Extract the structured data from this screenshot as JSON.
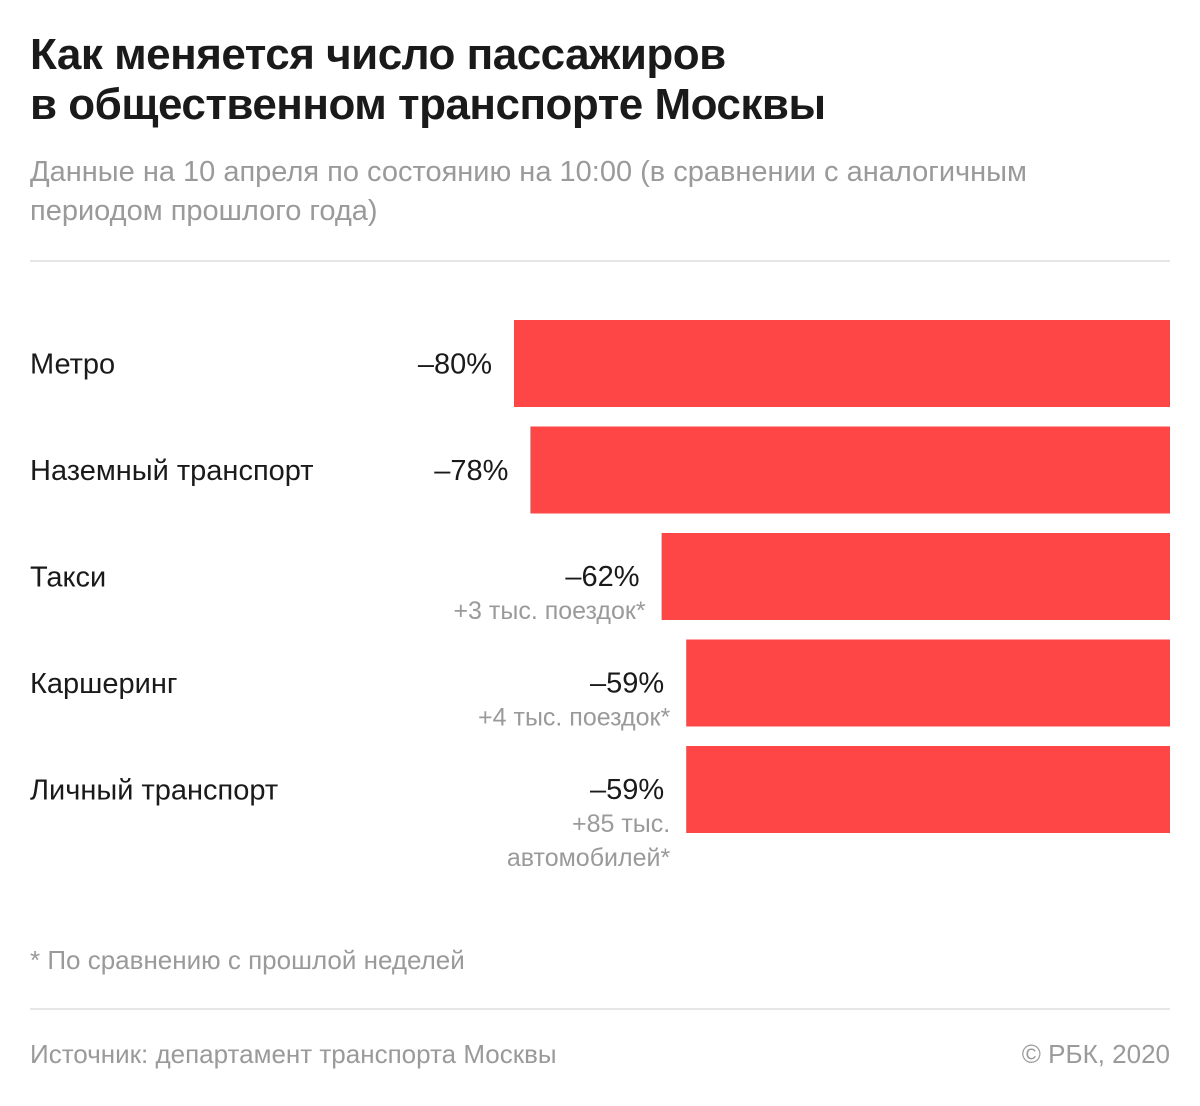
{
  "header": {
    "title_line1": "Как меняется число пассажиров",
    "title_line2": "в общественном транспорте Москвы",
    "subtitle_line1": "Данные на 10 апреля по состоянию на 10:00 (в сравнении с аналогичным",
    "subtitle_line2": "периодом прошлого года)"
  },
  "colors": {
    "bar": "#ff4646",
    "text": "#1a1a1a",
    "muted": "#9a9a9a"
  },
  "chart_data": {
    "type": "bar",
    "orientation": "horizontal",
    "categories": [
      "Метро",
      "Наземный транспорт",
      "Такси",
      "Каршеринг",
      "Личный транспорт"
    ],
    "values": [
      -80,
      -78,
      -62,
      -59,
      -59
    ],
    "value_labels": [
      "–80%",
      "–78%",
      "–62%",
      "–59%",
      "–59%"
    ],
    "notes": [
      [],
      [],
      [
        "+3 тыс. поездок*"
      ],
      [
        "+4 тыс. поездок*"
      ],
      [
        "+85 тыс.",
        "автомобилей*"
      ]
    ],
    "xlim": [
      -80,
      0
    ],
    "unit": "%"
  },
  "footer": {
    "footnote": "* По сравнению с прошлой неделей",
    "source": "Источник: департамент транспорта Москвы",
    "copyright": "© РБК, 2020"
  }
}
